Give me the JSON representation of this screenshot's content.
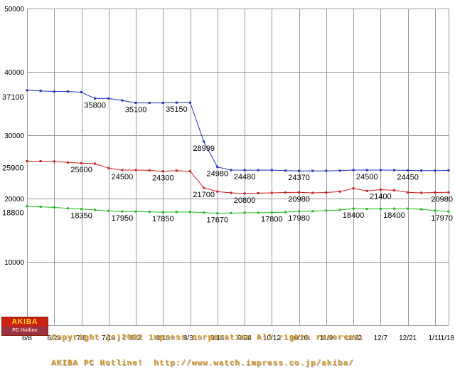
{
  "footer": {
    "logo_top": "AKIBA",
    "logo_bottom": "PC Hotline",
    "copyright_line1": "Copyright (c)2002 impress corporation All rights reserved.",
    "copyright_line2": "AKIBA PC Hotline!  http://www.watch.impress.co.jp/akiba/"
  },
  "chart_data": {
    "type": "line",
    "title": "",
    "xlabel": "",
    "ylabel": "",
    "ylim": [
      0,
      50000
    ],
    "ytick_values": [
      10000,
      20000,
      30000,
      40000,
      50000
    ],
    "grid": true,
    "grid_color": "#9a9a9a",
    "legend_position": "none",
    "x": [
      "6/8",
      "6/15",
      "6/22",
      "6/29",
      "7/6",
      "7/13",
      "7/19",
      "7/26",
      "8/3",
      "8/10",
      "8/16",
      "8/24",
      "8/31",
      "9/7",
      "9/14",
      "9/21",
      "9/28",
      "10/5",
      "10/12",
      "10/19",
      "10/26",
      "11/2",
      "11/9",
      "11/16",
      "11/22",
      "11/29",
      "12/7",
      "12/14",
      "12/21",
      "12/28",
      "1/11",
      "1/18"
    ],
    "tick_indices": [
      0,
      2,
      4,
      6,
      8,
      10,
      12,
      14,
      16,
      18,
      20,
      22,
      24,
      26,
      28,
      30,
      31
    ],
    "tick_labels": [
      "6/8",
      "6/22",
      "7/6",
      "7/19",
      "8/3",
      "8/16",
      "8/31",
      "9/14",
      "9/28",
      "10/12",
      "10/26",
      "11/9",
      "11/22",
      "12/7",
      "12/21",
      "1/11",
      "1/18"
    ],
    "series": [
      {
        "name": "blue",
        "color": "#2233bb",
        "values": [
          37100,
          37000,
          36900,
          36900,
          36800,
          35800,
          35800,
          35500,
          35100,
          35100,
          35100,
          35150,
          35150,
          28999,
          24980,
          24500,
          24480,
          24480,
          24480,
          24400,
          24370,
          24370,
          24370,
          24400,
          24500,
          24500,
          24500,
          24480,
          24450,
          24400,
          24400,
          24450
        ],
        "labels": [
          {
            "i": 0,
            "text": "37100"
          },
          {
            "i": 5,
            "text": "35800"
          },
          {
            "i": 8,
            "text": "35100"
          },
          {
            "i": 11,
            "text": "35150"
          },
          {
            "i": 13,
            "text": "28999"
          },
          {
            "i": 14,
            "text": "24980"
          },
          {
            "i": 16,
            "text": "24480"
          },
          {
            "i": 20,
            "text": "24370"
          },
          {
            "i": 25,
            "text": "24500"
          },
          {
            "i": 28,
            "text": "24450"
          }
        ]
      },
      {
        "name": "red",
        "color": "#cc2222",
        "values": [
          25900,
          25900,
          25850,
          25700,
          25600,
          25500,
          24800,
          24500,
          24500,
          24450,
          24300,
          24400,
          24300,
          21700,
          21100,
          20900,
          20800,
          20850,
          20900,
          20950,
          20980,
          20900,
          20950,
          21100,
          21600,
          21200,
          21400,
          21300,
          20980,
          20900,
          20950,
          20980
        ],
        "labels": [
          {
            "i": 0,
            "text": "25900"
          },
          {
            "i": 4,
            "text": "25600"
          },
          {
            "i": 7,
            "text": "24500"
          },
          {
            "i": 10,
            "text": "24300"
          },
          {
            "i": 13,
            "text": "21700"
          },
          {
            "i": 16,
            "text": "20800"
          },
          {
            "i": 20,
            "text": "20980"
          },
          {
            "i": 26,
            "text": "21400"
          },
          {
            "i": 31,
            "text": "20980"
          }
        ]
      },
      {
        "name": "green",
        "color": "#22bb22",
        "values": [
          18800,
          18700,
          18600,
          18450,
          18350,
          18200,
          18050,
          17950,
          17950,
          17900,
          17850,
          17880,
          17880,
          17800,
          17670,
          17700,
          17750,
          17780,
          17800,
          17850,
          17980,
          18000,
          18100,
          18200,
          18400,
          18350,
          18380,
          18400,
          18400,
          18300,
          18100,
          17970
        ],
        "labels": [
          {
            "i": 0,
            "text": "18800"
          },
          {
            "i": 4,
            "text": "18350"
          },
          {
            "i": 7,
            "text": "17950"
          },
          {
            "i": 10,
            "text": "17850"
          },
          {
            "i": 14,
            "text": "17670"
          },
          {
            "i": 18,
            "text": "17800"
          },
          {
            "i": 20,
            "text": "17980"
          },
          {
            "i": 24,
            "text": "18400"
          },
          {
            "i": 27,
            "text": "18400"
          },
          {
            "i": 31,
            "text": "17970"
          }
        ]
      }
    ]
  }
}
